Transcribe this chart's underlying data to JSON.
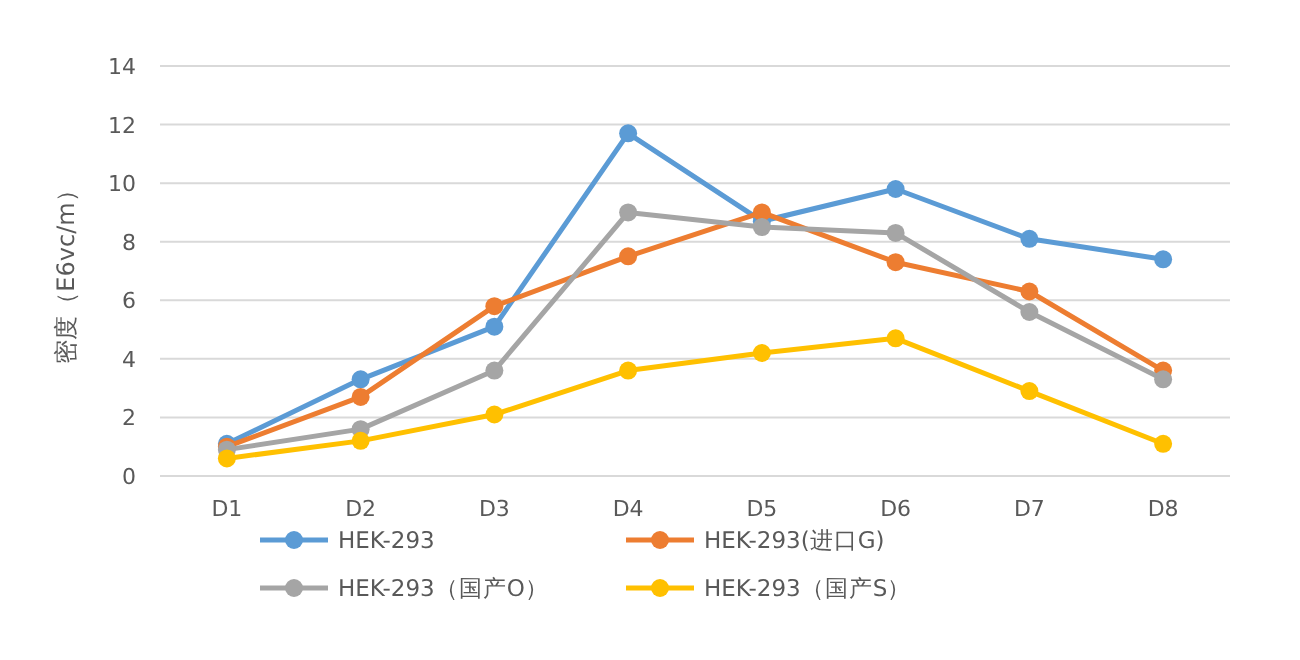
{
  "chart_data": {
    "type": "line",
    "ylabel": "密度（E6vc/m）",
    "categories": [
      "D1",
      "D2",
      "D3",
      "D4",
      "D5",
      "D6",
      "D7",
      "D8"
    ],
    "ylim": [
      0,
      14
    ],
    "yticks": [
      0,
      2,
      4,
      6,
      8,
      10,
      12,
      14
    ],
    "grid": "y",
    "legend": "bottom",
    "marker": "circle",
    "line_style": "solid",
    "series": [
      {
        "name": "HEK-293",
        "color": "#5b9bd5",
        "values": [
          1.1,
          3.3,
          5.1,
          11.7,
          8.7,
          9.8,
          8.1,
          7.4
        ]
      },
      {
        "name": "HEK-293(进口G)",
        "color": "#ed7d31",
        "values": [
          1.0,
          2.7,
          5.8,
          7.5,
          9.0,
          7.3,
          6.3,
          3.6
        ]
      },
      {
        "name": "HEK-293（国产O）",
        "color": "#a5a5a5",
        "values": [
          0.9,
          1.6,
          3.6,
          9.0,
          8.5,
          8.3,
          5.6,
          3.3
        ]
      },
      {
        "name": "HEK-293（国产S）",
        "color": "#ffc000",
        "values": [
          0.6,
          1.2,
          2.1,
          3.6,
          4.2,
          4.7,
          2.9,
          1.1
        ]
      }
    ]
  }
}
